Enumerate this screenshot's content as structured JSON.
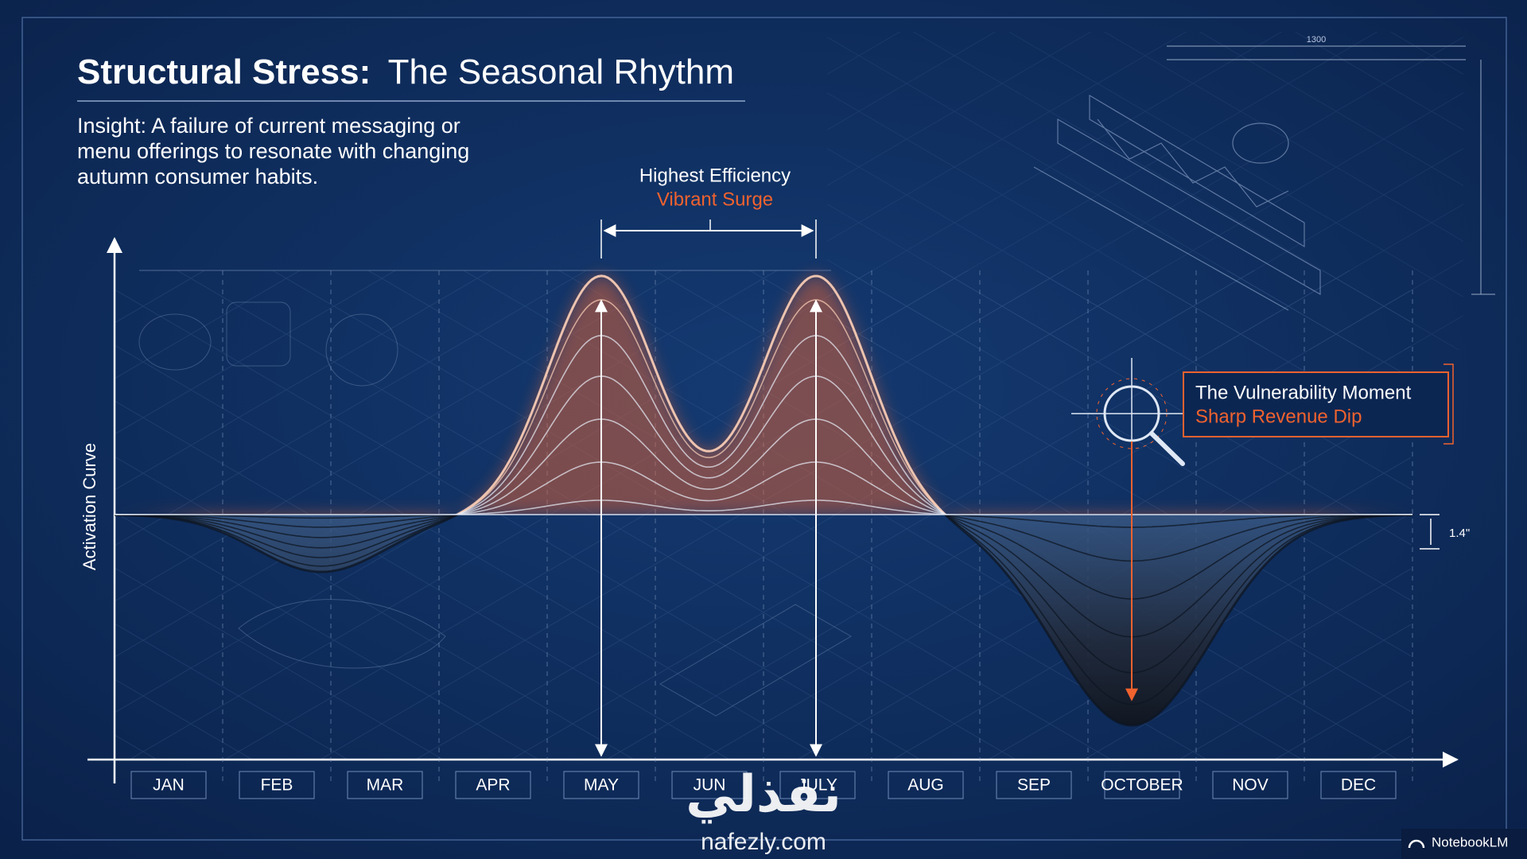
{
  "header": {
    "title_bold": "Structural Stress:",
    "title_rest": "The Seasonal Rhythm",
    "insight": [
      "Insight: A failure of current messaging or",
      "menu offerings to resonate with changing",
      "autumn consumer habits."
    ]
  },
  "axis": {
    "y_label": "Activation Curve",
    "months": [
      "JAN",
      "FEB",
      "MAR",
      "APR",
      "MAY",
      "JUN",
      "JULY",
      "AUG",
      "SEP",
      "OCTOBER",
      "NOV",
      "DEC"
    ]
  },
  "annotations": {
    "peak": {
      "title": "Highest Efficiency",
      "subtitle": "Vibrant Surge"
    },
    "trough": {
      "title": "The Vulnerability Moment",
      "subtitle": "Sharp Revenue Dip"
    },
    "depth": "1.4\"",
    "blueprint_dimension": "1300"
  },
  "watermark": {
    "arabic": "نفذلي",
    "url": "nafezly.com"
  },
  "branding": "NotebookLM"
}
